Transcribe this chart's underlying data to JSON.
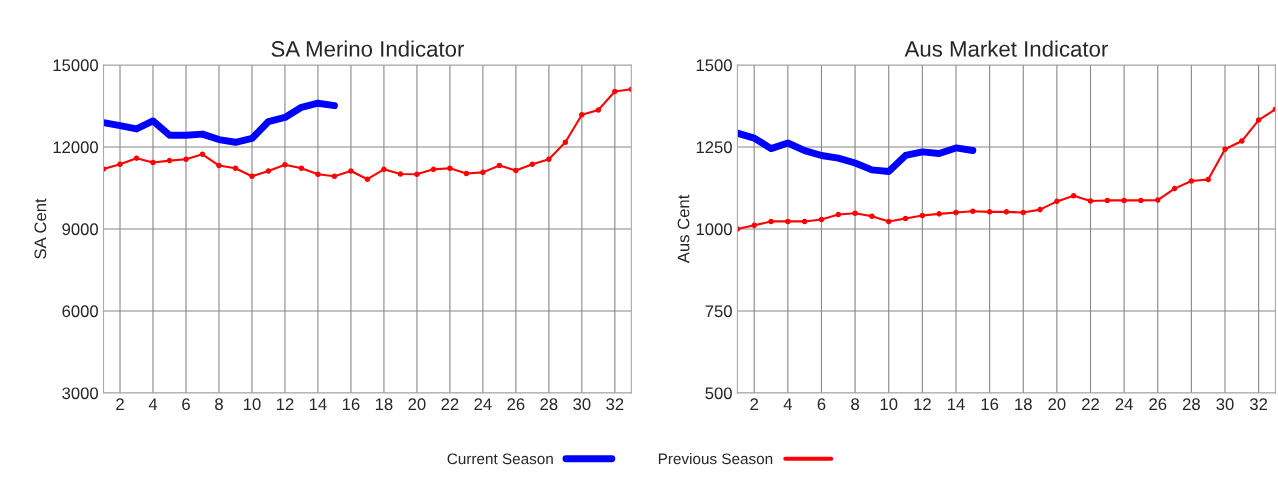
{
  "chart_data": [
    {
      "type": "line",
      "title": "SA Merino Indicator",
      "ylabel": "SA Cent",
      "x": [
        1,
        2,
        3,
        4,
        5,
        6,
        7,
        8,
        9,
        10,
        11,
        12,
        13,
        14,
        15,
        16,
        17,
        18,
        19,
        20,
        21,
        22,
        23,
        24,
        25,
        26,
        27,
        28,
        29,
        30,
        31,
        32,
        33
      ],
      "xlim": [
        1,
        33
      ],
      "xticks": [
        2,
        4,
        6,
        8,
        10,
        12,
        14,
        16,
        18,
        20,
        22,
        24,
        26,
        28,
        30,
        32
      ],
      "ylim": [
        3000,
        15000
      ],
      "yticks": [
        3000,
        6000,
        9000,
        12000,
        15000
      ],
      "grid": true,
      "legend": "bottom",
      "series": [
        {
          "name": "Current Season",
          "color": "#0000ff",
          "marker": "none",
          "values": [
            12890,
            12780,
            12660,
            12950,
            12430,
            12430,
            12470,
            12270,
            12170,
            12310,
            12930,
            13080,
            13450,
            13600,
            13510,
            null,
            null,
            null,
            null,
            null,
            null,
            null,
            null,
            null,
            null,
            null,
            null,
            null,
            null,
            null,
            null,
            null,
            null
          ]
        },
        {
          "name": "Previous Season",
          "color": "#ff0000",
          "marker": "circle",
          "values": [
            11190,
            11370,
            11590,
            11430,
            11500,
            11550,
            11730,
            11320,
            11220,
            10930,
            11120,
            11350,
            11220,
            11000,
            10930,
            11120,
            10820,
            11180,
            11010,
            11000,
            11180,
            11220,
            11030,
            11070,
            11320,
            11140,
            11370,
            11550,
            12170,
            13180,
            13350,
            14030,
            14110
          ]
        }
      ]
    },
    {
      "type": "line",
      "title": "Aus Market Indicator",
      "ylabel": "Aus Cent",
      "x": [
        1,
        2,
        3,
        4,
        5,
        6,
        7,
        8,
        9,
        10,
        11,
        12,
        13,
        14,
        15,
        16,
        17,
        18,
        19,
        20,
        21,
        22,
        23,
        24,
        25,
        26,
        27,
        28,
        29,
        30,
        31,
        32,
        33
      ],
      "xlim": [
        1,
        33
      ],
      "xticks": [
        2,
        4,
        6,
        8,
        10,
        12,
        14,
        16,
        18,
        20,
        22,
        24,
        26,
        28,
        30,
        32
      ],
      "ylim": [
        500,
        1500
      ],
      "yticks": [
        500,
        750,
        1000,
        1250,
        1500
      ],
      "grid": true,
      "series": [
        {
          "color": "#0000ff",
          "marker": "none",
          "values": [
            1292,
            1277,
            1245,
            1262,
            1239,
            1224,
            1216,
            1201,
            1180,
            1175,
            1224,
            1235,
            1230,
            1247,
            1239,
            null,
            null,
            null,
            null,
            null,
            null,
            null,
            null,
            null,
            null,
            null,
            null,
            null,
            null,
            null,
            null,
            null,
            null
          ]
        },
        {
          "color": "#ff0000",
          "marker": "circle",
          "values": [
            1000,
            1011,
            1023,
            1023,
            1023,
            1029,
            1044,
            1048,
            1039,
            1023,
            1032,
            1041,
            1046,
            1050,
            1054,
            1052,
            1052,
            1050,
            1059,
            1084,
            1101,
            1085,
            1087,
            1087,
            1087,
            1088,
            1123,
            1146,
            1151,
            1243,
            1268,
            1332,
            1365
          ]
        }
      ]
    }
  ]
}
